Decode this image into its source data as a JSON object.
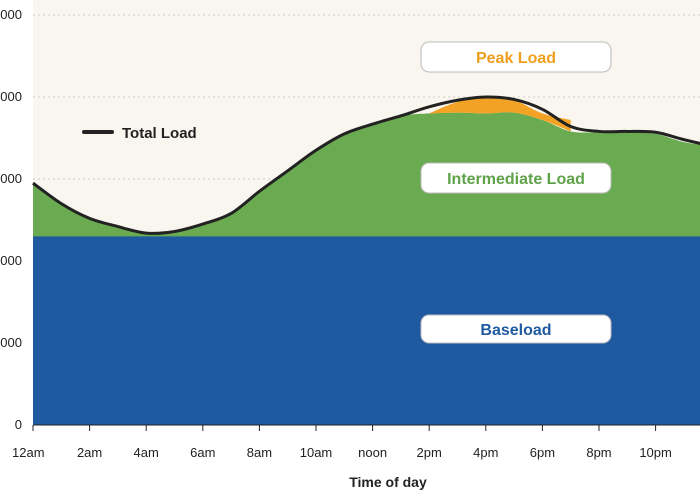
{
  "chart_data": {
    "type": "area",
    "xlabel": "Time of day",
    "x_ticks": [
      "12am",
      "2am",
      "4am",
      "6am",
      "8am",
      "10am",
      "noon",
      "2pm",
      "4pm",
      "6pm",
      "8pm",
      "10pm"
    ],
    "y_ticks": [
      "0",
      "000",
      "000",
      "000",
      "000",
      "000"
    ],
    "ylim": [
      0,
      5
    ],
    "grid": "dotted horizontal",
    "legend": {
      "label": "Total Load",
      "color": "#222222",
      "placement": "upper-left"
    },
    "series": [
      {
        "name": "Baseload",
        "color": "#1f5aa0",
        "label_color": "#1f5aa0",
        "hours": [
          0,
          24
        ],
        "values": [
          2.3,
          2.3
        ]
      },
      {
        "name": "Intermediate Load",
        "color": "#6aaa50",
        "label_color": "#5fa24a",
        "hours": [
          0,
          1,
          2,
          3,
          4,
          5,
          6,
          7,
          8,
          9,
          10,
          11,
          12,
          13,
          14,
          15,
          16,
          17,
          18,
          19,
          20,
          21,
          22,
          23,
          24
        ],
        "values": [
          2.95,
          2.7,
          2.52,
          2.42,
          2.34,
          2.36,
          2.45,
          2.58,
          2.85,
          3.1,
          3.35,
          3.55,
          3.67,
          3.77,
          3.8,
          3.81,
          3.8,
          3.81,
          3.72,
          3.58,
          3.57,
          3.57,
          3.55,
          3.45,
          3.4
        ]
      },
      {
        "name": "Peak Load",
        "color": "#f2a224",
        "label_color": "#ef9e1d",
        "hours": [
          14,
          15,
          16,
          17,
          18,
          19
        ],
        "values": [
          3.8,
          3.94,
          4.0,
          3.96,
          3.8,
          3.72
        ]
      }
    ],
    "total_load": {
      "hours": [
        0,
        1,
        2,
        3,
        4,
        5,
        6,
        7,
        8,
        9,
        10,
        11,
        12,
        13,
        14,
        15,
        16,
        17,
        18,
        19,
        20,
        21,
        22,
        23,
        24
      ],
      "values": [
        2.95,
        2.7,
        2.52,
        2.42,
        2.34,
        2.36,
        2.45,
        2.58,
        2.85,
        3.1,
        3.35,
        3.55,
        3.67,
        3.77,
        3.88,
        3.96,
        4.0,
        3.97,
        3.85,
        3.64,
        3.58,
        3.58,
        3.57,
        3.48,
        3.4
      ]
    }
  },
  "colors": {
    "plot_background": "#f8f6ef",
    "gridline": "#cccccc",
    "label_box_fill": "#ffffff",
    "label_box_stroke": "#bbbbbb"
  }
}
